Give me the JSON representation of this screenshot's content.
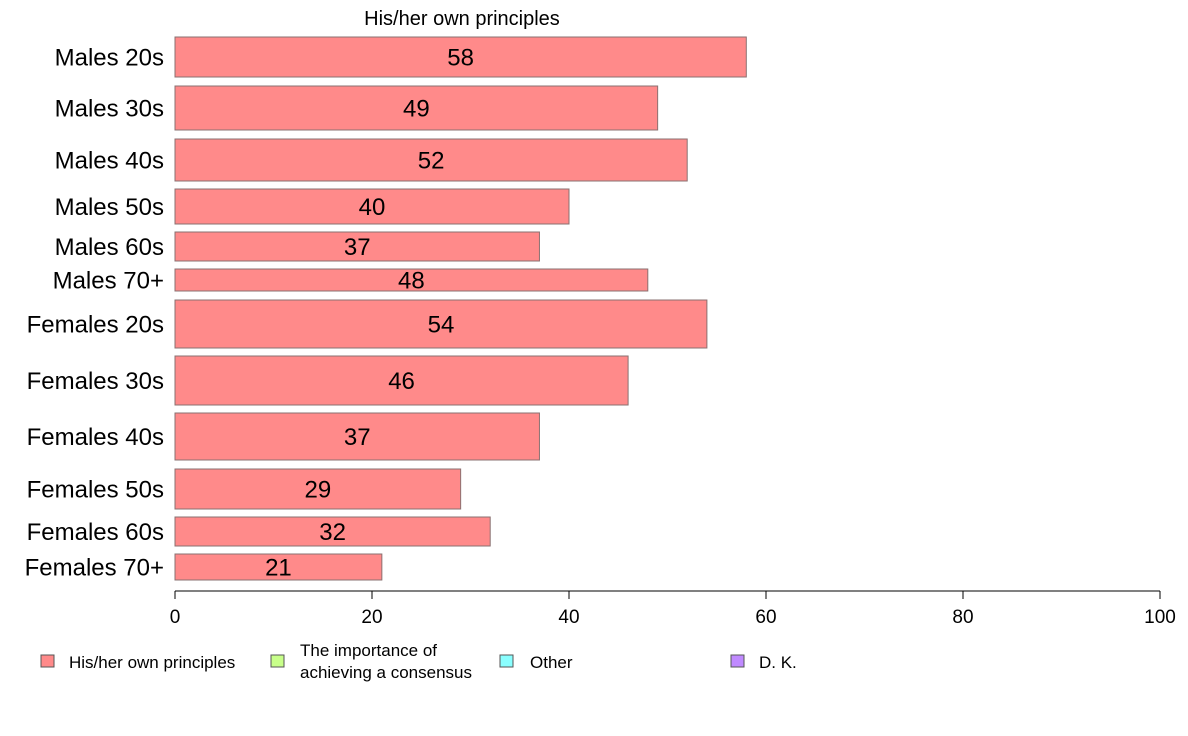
{
  "chart_data": {
    "type": "bar",
    "orientation": "horizontal",
    "title": "His/her own principles",
    "categories": [
      "Males 20s",
      "Males 30s",
      "Males 40s",
      "Males 50s",
      "Males 60s",
      "Males 70+",
      "Females 20s",
      "Females 30s",
      "Females 40s",
      "Females 50s",
      "Females 60s",
      "Females 70+"
    ],
    "values": [
      58,
      49,
      52,
      40,
      37,
      48,
      54,
      46,
      37,
      29,
      32,
      21
    ],
    "xlim": [
      0,
      100
    ],
    "xticks": [
      0,
      20,
      40,
      60,
      80,
      100
    ],
    "grid": false,
    "legend_position": "bottom",
    "legend": [
      {
        "label": "His/her own principles",
        "color": "#ff8a8a"
      },
      {
        "label_lines": [
          "The importance of",
          "achieving a consensus"
        ],
        "color": "#c8ff8a"
      },
      {
        "label": "Other",
        "color": "#8affff"
      },
      {
        "label": "D. K.",
        "color": "#c08aff"
      }
    ],
    "bar_color": "#ff8a8a",
    "bar_stroke": "#8a7070"
  }
}
